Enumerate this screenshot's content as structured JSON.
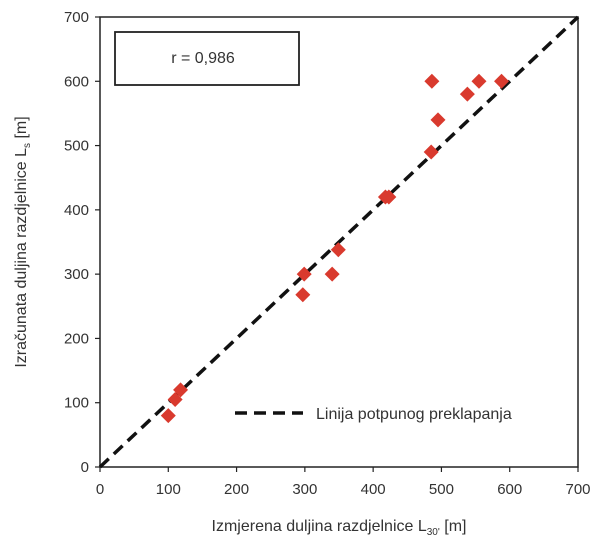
{
  "chart_data": {
    "type": "scatter",
    "annotation": "r = 0,986",
    "xlabel": {
      "main": "Izmjerena duljina razdjelnice L",
      "sub": "30'",
      "unit": " [m]"
    },
    "ylabel": {
      "main": "Izračunata duljina razdjelnice L",
      "sub": "s",
      "unit": " [m]"
    },
    "xlim": [
      0,
      700
    ],
    "ylim": [
      0,
      700
    ],
    "xticks": [
      "0",
      "100",
      "200",
      "300",
      "400",
      "500",
      "600",
      "700"
    ],
    "yticks": [
      "0",
      "100",
      "200",
      "300",
      "400",
      "500",
      "600",
      "700"
    ],
    "grid": false,
    "legend": {
      "position": "bottom-right",
      "entries": [
        "Linija potpunog preklapanja"
      ]
    },
    "series": [
      {
        "marker": "diamond",
        "color": "#d93a2e",
        "points": [
          [
            100,
            80
          ],
          [
            110,
            105
          ],
          [
            118,
            120
          ],
          [
            297,
            268
          ],
          [
            299,
            300
          ],
          [
            340,
            300
          ],
          [
            349,
            338
          ],
          [
            418,
            420
          ],
          [
            423,
            420
          ],
          [
            485,
            490
          ],
          [
            486,
            600
          ],
          [
            495,
            540
          ],
          [
            538,
            580
          ],
          [
            555,
            600
          ],
          [
            588,
            600
          ]
        ]
      }
    ],
    "reference_line": {
      "style": "dashed",
      "color": "#111111",
      "from": [
        0,
        0
      ],
      "to": [
        700,
        700
      ]
    }
  }
}
